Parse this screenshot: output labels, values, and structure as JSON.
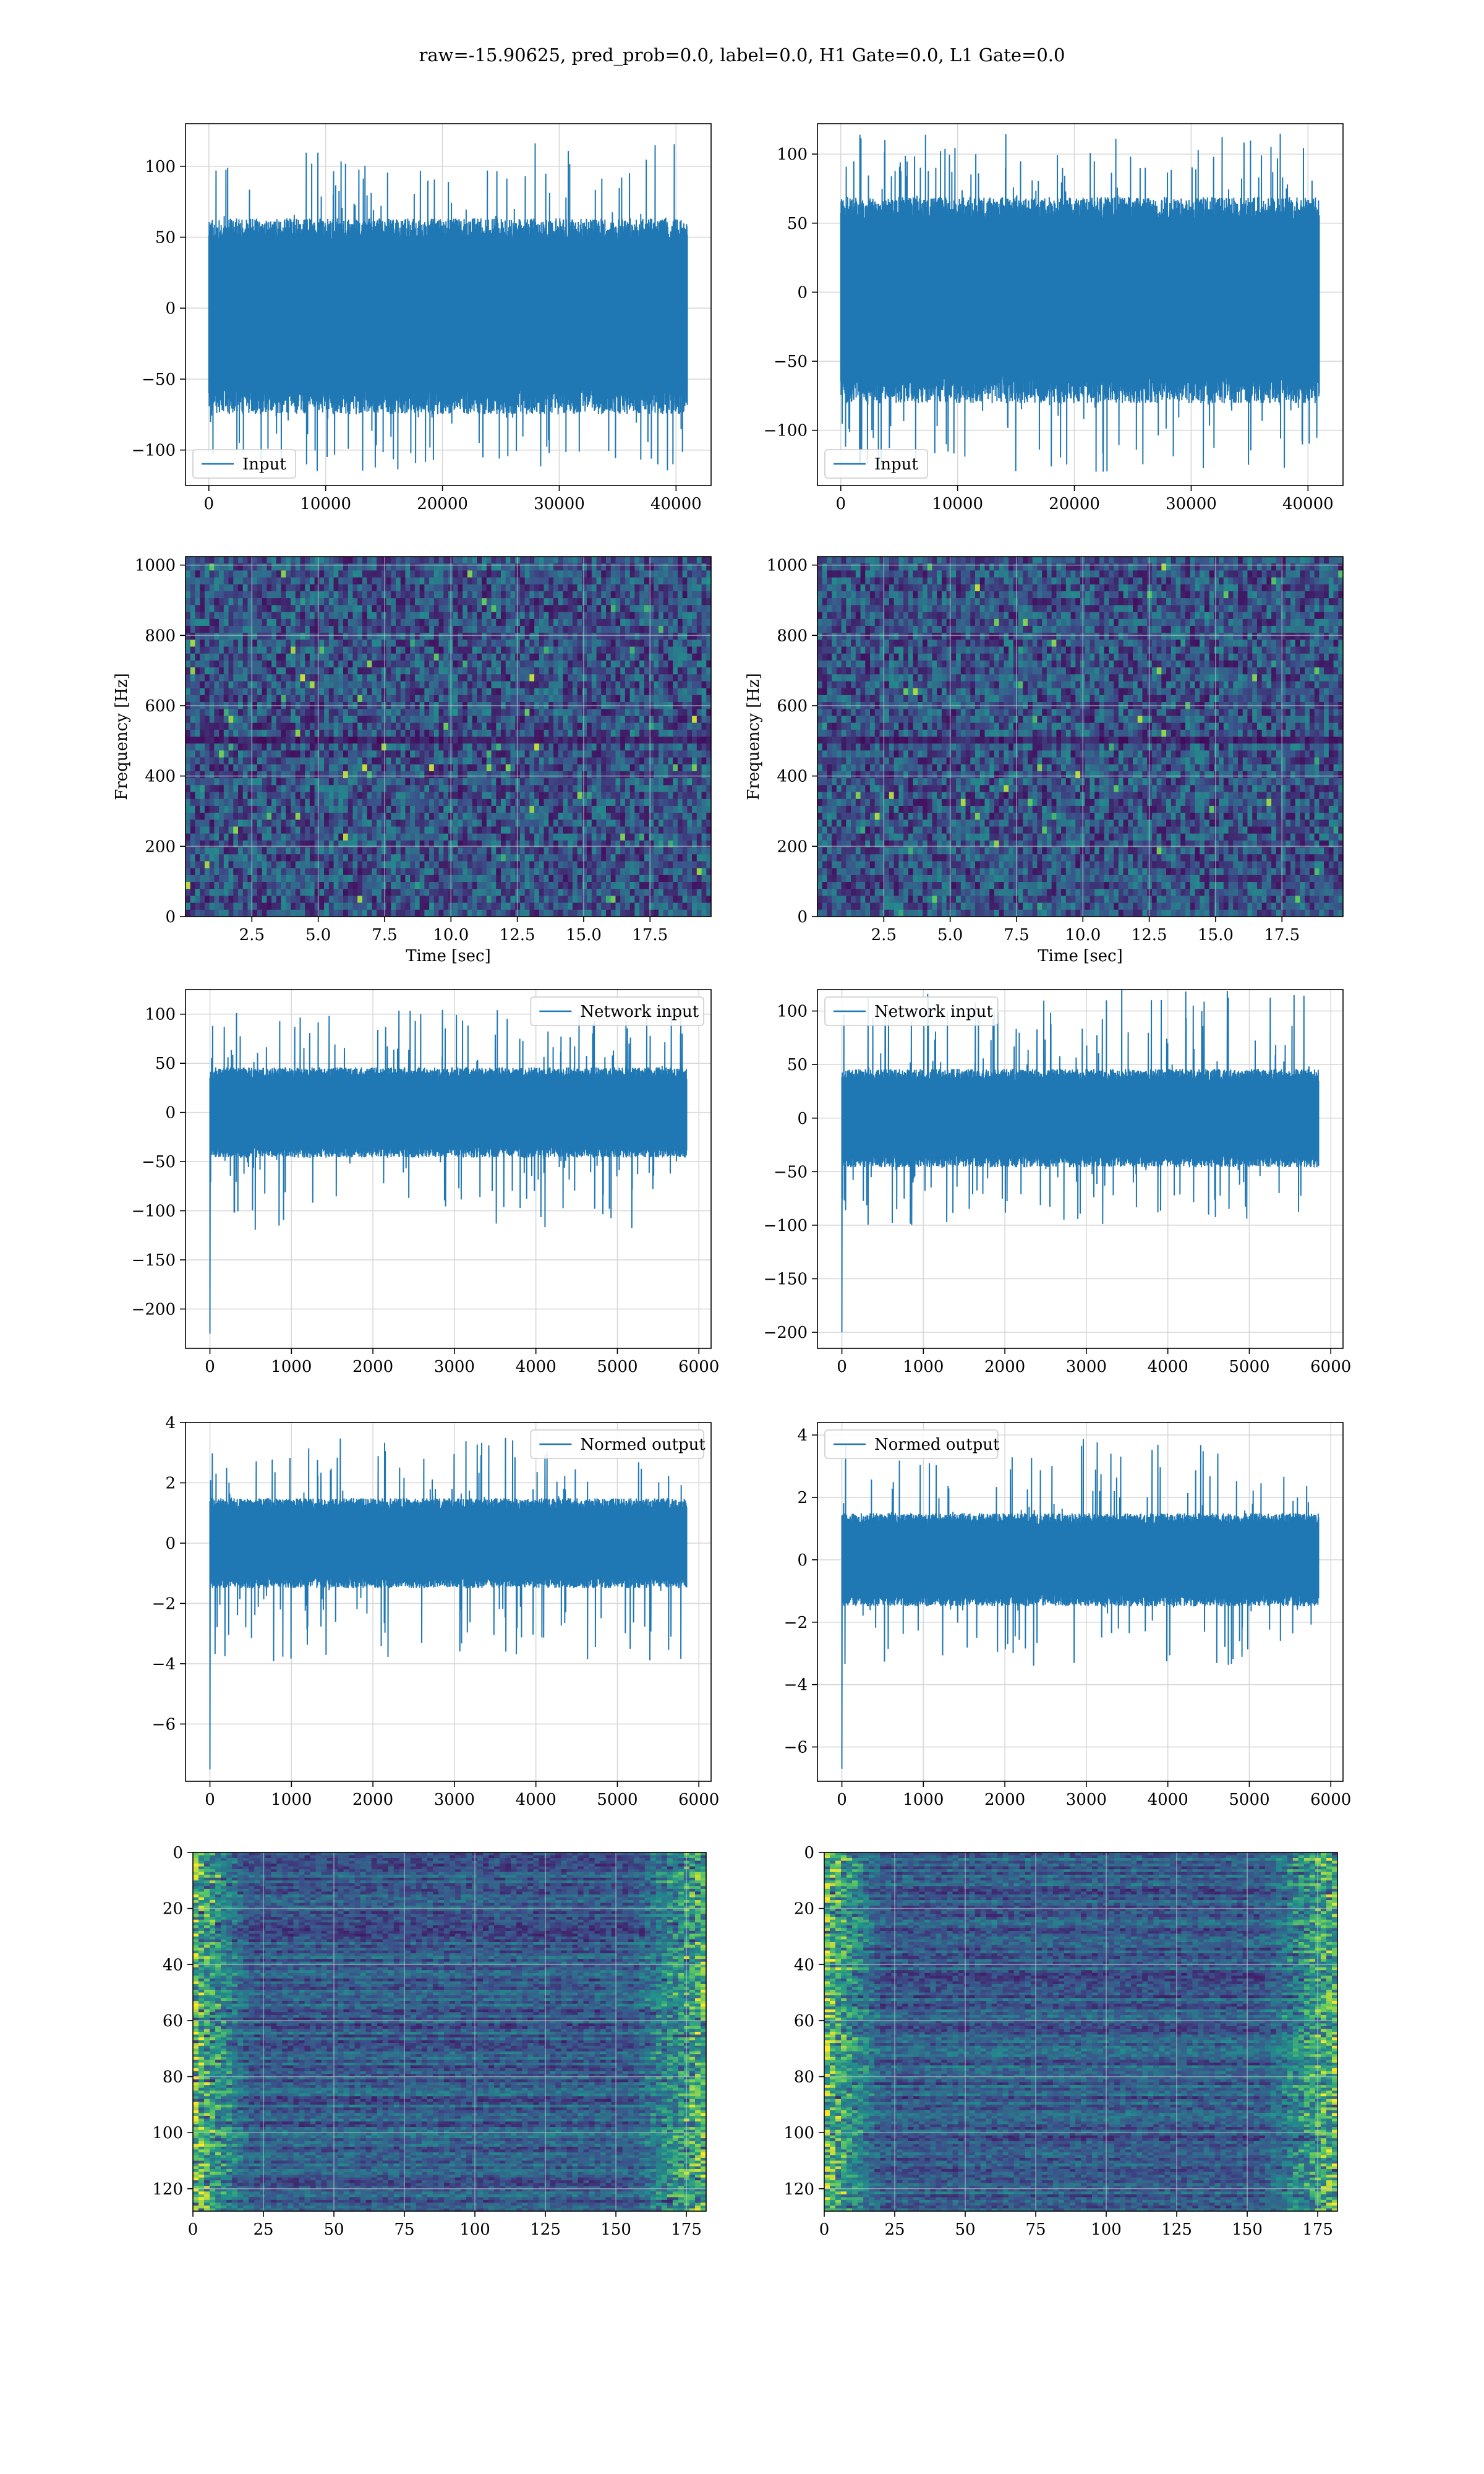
{
  "suptitle": "raw=-15.90625, pred_prob=0.0, label=0.0, H1 Gate=0.0, L1 Gate=0.0",
  "colors": {
    "series": "#1f77b4",
    "grid": "#d9d9d9",
    "frame": "#000000"
  },
  "chart_data": [
    {
      "id": "h1-input",
      "type": "line",
      "legend": "Input",
      "legend_loc": "lower-left",
      "xlim": [
        -2000,
        43000
      ],
      "ylim": [
        -125,
        130
      ],
      "xticks": [
        0,
        10000,
        20000,
        30000,
        40000
      ],
      "yticks": [
        -100,
        -50,
        0,
        50,
        100
      ],
      "n_points": 40960,
      "body_low": -65,
      "body_high": 55,
      "peak_max": 120,
      "peak_min": -115,
      "seed": 11,
      "grid": true
    },
    {
      "id": "l1-input",
      "type": "line",
      "legend": "Input",
      "legend_loc": "lower-left",
      "xlim": [
        -2000,
        43000
      ],
      "ylim": [
        -140,
        122
      ],
      "xticks": [
        0,
        10000,
        20000,
        30000,
        40000
      ],
      "yticks": [
        -100,
        -50,
        0,
        50,
        100
      ],
      "n_points": 40960,
      "body_low": -70,
      "body_high": 60,
      "peak_max": 115,
      "peak_min": -130,
      "seed": 23,
      "grid": true
    },
    {
      "id": "h1-spectrogram",
      "type": "heatmap",
      "xlabel": "Time [sec]",
      "ylabel": "Frequency [Hz]",
      "xlim": [
        0,
        19.8
      ],
      "ylim": [
        0,
        1024
      ],
      "xticks": [
        2.5,
        5.0,
        7.5,
        10.0,
        12.5,
        15.0,
        17.5
      ],
      "yticks": [
        0,
        200,
        400,
        600,
        800,
        1000
      ],
      "colormap": "viridis",
      "seed": 31,
      "grid": true
    },
    {
      "id": "l1-spectrogram",
      "type": "heatmap",
      "xlabel": "Time [sec]",
      "ylabel": "Frequency [Hz]",
      "xlim": [
        0,
        19.8
      ],
      "ylim": [
        0,
        1024
      ],
      "xticks": [
        2.5,
        5.0,
        7.5,
        10.0,
        12.5,
        15.0,
        17.5
      ],
      "yticks": [
        0,
        200,
        400,
        600,
        800,
        1000
      ],
      "colormap": "viridis",
      "seed": 47,
      "grid": true
    },
    {
      "id": "h1-network-input",
      "type": "line",
      "legend": "Network input",
      "legend_loc": "upper-right",
      "xlim": [
        -300,
        6150
      ],
      "ylim": [
        -240,
        125
      ],
      "xticks": [
        0,
        1000,
        2000,
        3000,
        4000,
        5000,
        6000
      ],
      "yticks": [
        -200,
        -150,
        -100,
        -50,
        0,
        50,
        100
      ],
      "n_points": 5850,
      "body_low": -40,
      "body_high": 40,
      "peak_max": 105,
      "peak_min": -120,
      "start_value": -225,
      "seed": 53,
      "grid": true
    },
    {
      "id": "l1-network-input",
      "type": "line",
      "legend": "Network input",
      "legend_loc": "upper-left",
      "xlim": [
        -300,
        6150
      ],
      "ylim": [
        -215,
        120
      ],
      "xticks": [
        0,
        1000,
        2000,
        3000,
        4000,
        5000,
        6000
      ],
      "yticks": [
        -200,
        -150,
        -100,
        -50,
        0,
        50,
        100
      ],
      "n_points": 5850,
      "body_low": -40,
      "body_high": 40,
      "peak_max": 120,
      "peak_min": -100,
      "start_value": -200,
      "seed": 67,
      "grid": true
    },
    {
      "id": "h1-normed-output",
      "type": "line",
      "legend": "Normed output",
      "legend_loc": "upper-right",
      "xlim": [
        -300,
        6150
      ],
      "ylim": [
        -7.9,
        4.0
      ],
      "xticks": [
        0,
        1000,
        2000,
        3000,
        4000,
        5000,
        6000
      ],
      "yticks": [
        -6,
        -4,
        -2,
        0,
        2,
        4
      ],
      "n_points": 5850,
      "body_low": -1.3,
      "body_high": 1.3,
      "peak_max": 3.5,
      "peak_min": -4.0,
      "start_value": -7.5,
      "seed": 71,
      "grid": true
    },
    {
      "id": "l1-normed-output",
      "type": "line",
      "legend": "Normed output",
      "legend_loc": "upper-left",
      "xlim": [
        -300,
        6150
      ],
      "ylim": [
        -7.1,
        4.4
      ],
      "xticks": [
        0,
        1000,
        2000,
        3000,
        4000,
        5000,
        6000
      ],
      "yticks": [
        -6,
        -4,
        -2,
        0,
        2,
        4
      ],
      "n_points": 5850,
      "body_low": -1.3,
      "body_high": 1.3,
      "peak_max": 3.9,
      "peak_min": -3.5,
      "start_value": -6.7,
      "seed": 83,
      "grid": true
    },
    {
      "id": "h1-feature-map",
      "type": "heatmap",
      "xlim": [
        0,
        182
      ],
      "ylim": [
        0,
        128
      ],
      "y_inverted": true,
      "xticks": [
        0,
        25,
        50,
        75,
        100,
        125,
        150,
        175
      ],
      "yticks": [
        0,
        20,
        40,
        60,
        80,
        100,
        120
      ],
      "colormap": "viridis",
      "seed": 97,
      "grid": true
    },
    {
      "id": "l1-feature-map",
      "type": "heatmap",
      "xlim": [
        0,
        182
      ],
      "ylim": [
        0,
        128
      ],
      "y_inverted": true,
      "xticks": [
        0,
        25,
        50,
        75,
        100,
        125,
        150,
        175
      ],
      "yticks": [
        0,
        20,
        40,
        60,
        80,
        100,
        120
      ],
      "colormap": "viridis",
      "seed": 101,
      "grid": true
    }
  ]
}
